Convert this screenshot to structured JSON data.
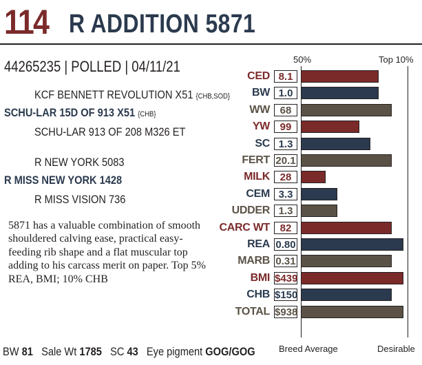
{
  "header": {
    "lot_number": "114",
    "animal_name": "R ADDITION 5871"
  },
  "id_line": "44265235 | POLLED | 04/11/21",
  "pedigree": {
    "sire_sire": {
      "name": "KCF BENNETT REVOLUTION X51",
      "note": "{CHB,SOD}"
    },
    "sire": {
      "name": "SCHU-LAR 15D OF 913 X51",
      "note": "{CHB}"
    },
    "sire_dam": {
      "name": "SCHU-LAR 913 OF 208 M326 ET"
    },
    "dam_sire": {
      "name": "R NEW YORK 5083"
    },
    "dam": {
      "name": "R MISS NEW YORK 1428"
    },
    "dam_dam": {
      "name": "R MISS VISION 736"
    }
  },
  "description": "5871 has a valuable combination of smooth shouldered calving ease, practical easy-feeding rib shape and a flat muscular top adding to his carcass merit on paper. Top 5% REA, BMI; 10% CHB",
  "footer": {
    "bw_label": "BW",
    "bw_value": "81",
    "sale_wt_label": "Sale Wt",
    "sale_wt_value": "1785",
    "sc_label": "SC",
    "sc_value": "43",
    "eye_label": "Eye pigment",
    "eye_value": "GOG/GOG"
  },
  "chart_data": {
    "type": "bar",
    "top_labels": [
      "50%",
      "Top 10%"
    ],
    "bottom_labels": [
      "Breed Average",
      "Desirable"
    ],
    "colors": {
      "production": "#7b2a2a",
      "growth": "#2b3a4e",
      "other": "#5a5246"
    },
    "rows": [
      {
        "trait": "CED",
        "value": "8.1",
        "bar": 0.73,
        "color": "production"
      },
      {
        "trait": "BW",
        "value": "1.0",
        "bar": 0.73,
        "color": "growth"
      },
      {
        "trait": "WW",
        "value": "68",
        "bar": 0.85,
        "color": "other"
      },
      {
        "trait": "YW",
        "value": "99",
        "bar": 0.55,
        "color": "production"
      },
      {
        "trait": "SC",
        "value": "1.3",
        "bar": 0.65,
        "color": "growth"
      },
      {
        "trait": "FERT",
        "value": "20.1",
        "bar": 0.85,
        "color": "other"
      },
      {
        "trait": "MILK",
        "value": "28",
        "bar": 0.23,
        "color": "production"
      },
      {
        "trait": "CEM",
        "value": "3.3",
        "bar": 0.34,
        "color": "growth"
      },
      {
        "trait": "UDDER",
        "value": "1.3",
        "bar": 0.34,
        "color": "other"
      },
      {
        "trait": "CARC WT",
        "value": "82",
        "bar": 0.85,
        "color": "production"
      },
      {
        "trait": "REA",
        "value": "0.80",
        "bar": 0.96,
        "color": "growth"
      },
      {
        "trait": "MARB",
        "value": "0.31",
        "bar": 0.85,
        "color": "other"
      },
      {
        "trait": "BMI",
        "value": "$439",
        "bar": 0.96,
        "color": "production"
      },
      {
        "trait": "CHB",
        "value": "$150",
        "bar": 0.85,
        "color": "growth"
      },
      {
        "trait": "TOTAL",
        "value": "$938",
        "bar": 0.96,
        "color": "other"
      }
    ]
  }
}
